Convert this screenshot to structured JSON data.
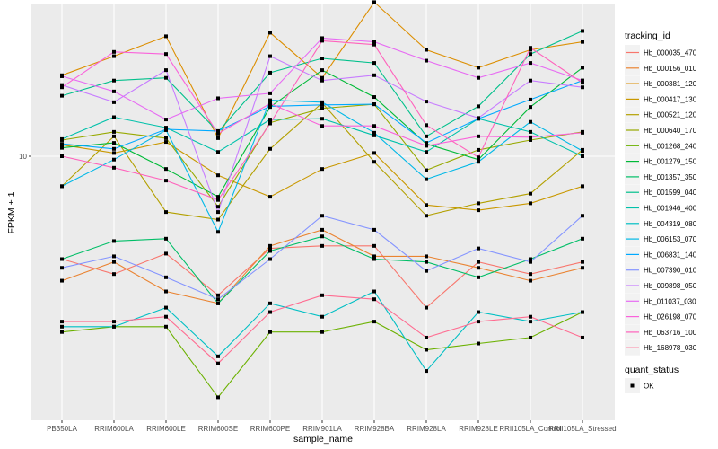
{
  "chart_data": {
    "type": "line",
    "title": "",
    "xlabel": "sample_name",
    "ylabel": "FPKM + 1",
    "y_scale": "log10",
    "ylim": [
      1.0,
      40.0
    ],
    "y_ticks": [
      10
    ],
    "y_tick_labels": [
      "10"
    ],
    "grid": true,
    "legend_position": "right",
    "categories": [
      "PB350LA",
      "RRIM600LA",
      "RRIM600LE",
      "RRIM600SE",
      "RRIM600PE",
      "RRIM901LA",
      "RRIM928BA",
      "RRIM928LA",
      "RRIM928LE",
      "RRII105LA_Control",
      "RRII105LA_Stressed"
    ],
    "color_legend": {
      "title": "tracking_id"
    },
    "shape_legend": {
      "title": "quant_status",
      "entries": [
        "OK"
      ]
    },
    "series": [
      {
        "name": "Hb_000035_470",
        "color": "#F8766D",
        "values": [
          3.9,
          3.4,
          4.1,
          2.8,
          4.3,
          4.4,
          4.4,
          2.5,
          3.8,
          3.4,
          3.8
        ]
      },
      {
        "name": "Hb_000156_010",
        "color": "#EA8331",
        "values": [
          3.2,
          3.8,
          2.9,
          2.6,
          4.4,
          5.1,
          4.0,
          4.0,
          3.6,
          3.2,
          3.6
        ]
      },
      {
        "name": "Hb_000381_120",
        "color": "#DC8E00",
        "values": [
          21.0,
          25.0,
          30.0,
          11.8,
          31.0,
          20.5,
          41.0,
          26.5,
          22.5,
          26.5,
          28.5
        ]
      },
      {
        "name": "Hb_000417_130",
        "color": "#C99800",
        "values": [
          11.1,
          10.3,
          11.4,
          8.4,
          6.9,
          8.9,
          10.3,
          6.4,
          6.1,
          6.5,
          7.6
        ]
      },
      {
        "name": "Hb_000521_120",
        "color": "#B3A000",
        "values": [
          7.6,
          12.0,
          6.0,
          5.6,
          10.7,
          16.3,
          9.5,
          5.8,
          6.5,
          7.1,
          10.6
        ]
      },
      {
        "name": "Hb_000640_170",
        "color": "#97A900",
        "values": [
          11.6,
          12.5,
          11.8,
          6.3,
          13.6,
          15.5,
          16.1,
          8.8,
          10.6,
          11.6,
          12.5
        ]
      },
      {
        "name": "Hb_001268_240",
        "color": "#6BB100",
        "values": [
          2.0,
          2.1,
          2.1,
          1.1,
          2.0,
          2.0,
          2.2,
          1.7,
          1.8,
          1.9,
          2.4
        ]
      },
      {
        "name": "Hb_001279_150",
        "color": "#00BA38",
        "values": [
          10.8,
          11.3,
          8.9,
          6.9,
          15.7,
          22.0,
          17.2,
          11.2,
          9.7,
          15.7,
          22.5
        ]
      },
      {
        "name": "Hb_001357_350",
        "color": "#00BE67",
        "values": [
          3.9,
          4.6,
          4.7,
          2.6,
          4.2,
          4.8,
          3.9,
          3.8,
          3.3,
          3.9,
          4.7
        ]
      },
      {
        "name": "Hb_001599_040",
        "color": "#00C08B",
        "values": [
          17.4,
          20.0,
          20.5,
          12.5,
          21.5,
          24.5,
          23.5,
          12.0,
          15.8,
          25.5,
          31.5
        ]
      },
      {
        "name": "Hb_001946_400",
        "color": "#00C1AA",
        "values": [
          11.7,
          14.3,
          13.0,
          10.4,
          14.0,
          14.1,
          12.1,
          10.4,
          14.1,
          12.5,
          10.0
        ]
      },
      {
        "name": "Hb_004319_080",
        "color": "#00BFC4",
        "values": [
          2.1,
          2.1,
          2.5,
          1.6,
          2.6,
          2.3,
          2.9,
          1.4,
          2.4,
          2.2,
          2.4
        ]
      },
      {
        "name": "Hb_006153_070",
        "color": "#00B8E7",
        "values": [
          7.6,
          9.7,
          12.7,
          5.0,
          16.7,
          16.4,
          12.4,
          8.1,
          9.5,
          13.7,
          10.5
        ]
      },
      {
        "name": "Hb_006831_140",
        "color": "#00A9FF",
        "values": [
          11.2,
          10.7,
          12.8,
          12.6,
          15.8,
          16.0,
          16.1,
          11.3,
          14.1,
          16.8,
          20.0
        ]
      },
      {
        "name": "Hb_007390_010",
        "color": "#8494FF",
        "values": [
          3.6,
          4.0,
          3.3,
          2.7,
          3.9,
          5.8,
          5.1,
          3.5,
          4.3,
          3.8,
          5.8
        ]
      },
      {
        "name": "Hb_009898_050",
        "color": "#C77CFF",
        "values": [
          19.2,
          16.4,
          22.0,
          6.0,
          25.0,
          20.0,
          21.0,
          16.5,
          14.2,
          20.0,
          18.8
        ]
      },
      {
        "name": "Hb_011037_030",
        "color": "#E76BF3",
        "values": [
          20.8,
          18.1,
          14.0,
          17.0,
          17.8,
          29.5,
          28.5,
          24.0,
          20.5,
          23.5,
          20.0
        ]
      },
      {
        "name": "Hb_026198_070",
        "color": "#FA62DB",
        "values": [
          18.8,
          26.0,
          25.5,
          12.3,
          16.2,
          13.2,
          13.2,
          11.0,
          12.0,
          11.9,
          12.4
        ]
      },
      {
        "name": "Hb_063716_100",
        "color": "#FF62BC",
        "values": [
          10.0,
          9.0,
          8.0,
          6.7,
          13.5,
          28.8,
          27.8,
          13.3,
          9.9,
          27.0,
          19.6
        ]
      },
      {
        "name": "Hb_168978_030",
        "color": "#FF6C91",
        "values": [
          2.2,
          2.2,
          2.3,
          1.5,
          2.4,
          2.8,
          2.7,
          1.9,
          2.2,
          2.3,
          1.9
        ]
      }
    ]
  }
}
